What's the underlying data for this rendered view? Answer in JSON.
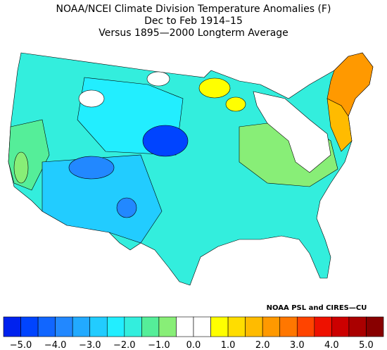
{
  "header": {
    "title": "NOAA/NCEI Climate Division Temperature Anomalies (F)",
    "period": "Dec to Feb 1914–15",
    "baseline": "Versus 1895—2000 Longterm Average"
  },
  "credit": "NOAA PSL and CIRES—CU",
  "colorbar": {
    "lim": [
      -5.5,
      5.5
    ],
    "colors": [
      "#0022ee",
      "#0044ff",
      "#1166ff",
      "#2288ff",
      "#22aaff",
      "#22ccff",
      "#22eeff",
      "#33eedd",
      "#55ee99",
      "#88ee77",
      "#ffffff",
      "#ffffff",
      "#ffff00",
      "#ffdd00",
      "#ffbb00",
      "#ff9900",
      "#ff7700",
      "#ff4400",
      "#ee1100",
      "#cc0000",
      "#aa0000",
      "#880000"
    ],
    "ticks": [
      {
        "value": -5,
        "label": "−5.0"
      },
      {
        "value": -4,
        "label": "−4.0"
      },
      {
        "value": -3,
        "label": "−3.0"
      },
      {
        "value": -2,
        "label": "−2.0"
      },
      {
        "value": -1,
        "label": "−1.0"
      },
      {
        "value": 0,
        "label": "0.0"
      },
      {
        "value": 1,
        "label": "1.0"
      },
      {
        "value": 2,
        "label": "2.0"
      },
      {
        "value": 3,
        "label": "3.0"
      },
      {
        "value": 4,
        "label": "4.0"
      },
      {
        "value": 5,
        "label": "5.0"
      }
    ]
  }
}
